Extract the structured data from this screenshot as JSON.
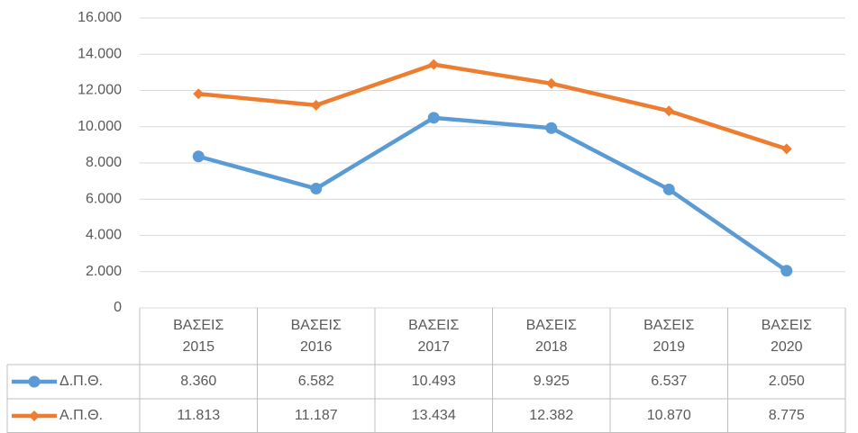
{
  "chart_data": {
    "type": "line",
    "categories": [
      "ΒΑΣΕΙΣ 2015",
      "ΒΑΣΕΙΣ 2016",
      "ΒΑΣΕΙΣ 2017",
      "ΒΑΣΕΙΣ 2018",
      "ΒΑΣΕΙΣ 2019",
      "ΒΑΣΕΙΣ 2020"
    ],
    "series": [
      {
        "name": "Δ.Π.Θ.",
        "color": "#5b9bd5",
        "marker": "circle",
        "values": [
          8360,
          6582,
          10493,
          9925,
          6537,
          2050
        ],
        "value_labels": [
          "8.360",
          "6.582",
          "10.493",
          "9.925",
          "6.537",
          "2.050"
        ]
      },
      {
        "name": "Α.Π.Θ.",
        "color": "#ed7d31",
        "marker": "diamond",
        "values": [
          11813,
          11187,
          13434,
          12382,
          10870,
          8775
        ],
        "value_labels": [
          "11.813",
          "11.187",
          "13.434",
          "12.382",
          "10.870",
          "8.775"
        ]
      }
    ],
    "ylim": [
      0,
      16000
    ],
    "yticks": [
      0,
      {
        "value": 2000,
        "label": "2.000"
      },
      {
        "value": 4000,
        "label": "4.000"
      },
      {
        "value": 6000,
        "label": "6.000"
      },
      {
        "value": 8000,
        "label": "8.000"
      },
      {
        "value": 10000,
        "label": "10.000"
      },
      {
        "value": 12000,
        "label": "12.000"
      },
      {
        "value": 14000,
        "label": "14.000"
      },
      {
        "value": 16000,
        "label": "16.000"
      }
    ],
    "grid": true,
    "data_table": true
  }
}
